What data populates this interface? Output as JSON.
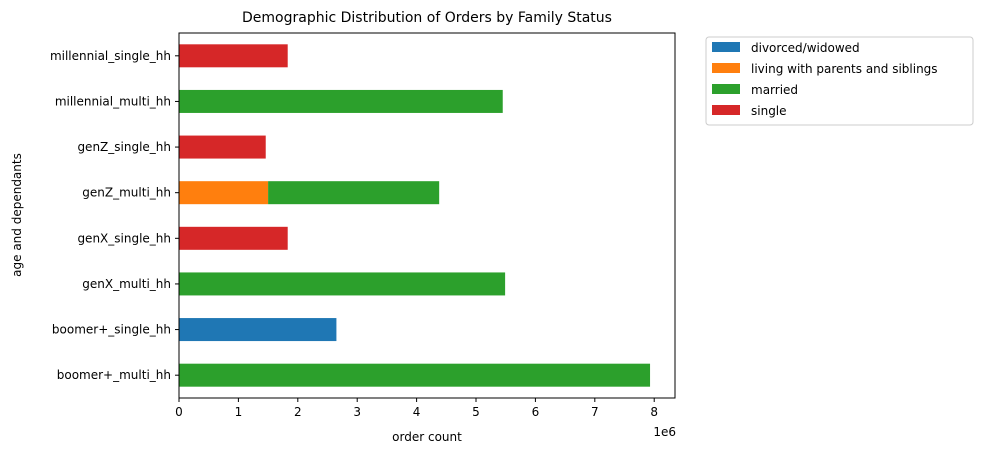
{
  "chart_data": {
    "type": "bar",
    "orientation": "horizontal",
    "stacked": true,
    "title": "Demographic Distribution of Orders by Family Status",
    "xlabel": "order count",
    "ylabel": "age and dependants",
    "x_scale_label": "1e6",
    "xlim": [
      0,
      8.35
    ],
    "x_unit_multiplier": 1000000,
    "xticks": [
      "0",
      "1",
      "2",
      "3",
      "4",
      "5",
      "6",
      "7",
      "8"
    ],
    "grid": false,
    "legend_position": "outside-top-right",
    "categories": [
      "boomer+_multi_hh",
      "boomer+_single_hh",
      "genX_multi_hh",
      "genX_single_hh",
      "genZ_multi_hh",
      "genZ_single_hh",
      "millennial_multi_hh",
      "millennial_single_hh"
    ],
    "series": [
      {
        "name": "divorced/widowed",
        "color": "#1f77b4",
        "values": [
          0,
          2.65,
          0,
          0,
          0,
          0,
          0,
          0
        ]
      },
      {
        "name": "living with parents and siblings",
        "color": "#ff7f0e",
        "values": [
          0,
          0,
          0,
          0,
          1.5,
          0,
          0,
          0
        ]
      },
      {
        "name": "married",
        "color": "#2ca02c",
        "values": [
          7.93,
          0,
          5.49,
          0,
          2.88,
          0,
          5.45,
          0
        ]
      },
      {
        "name": "single",
        "color": "#d62728",
        "values": [
          0,
          0,
          0,
          1.83,
          0,
          1.46,
          0,
          1.83
        ]
      }
    ]
  }
}
